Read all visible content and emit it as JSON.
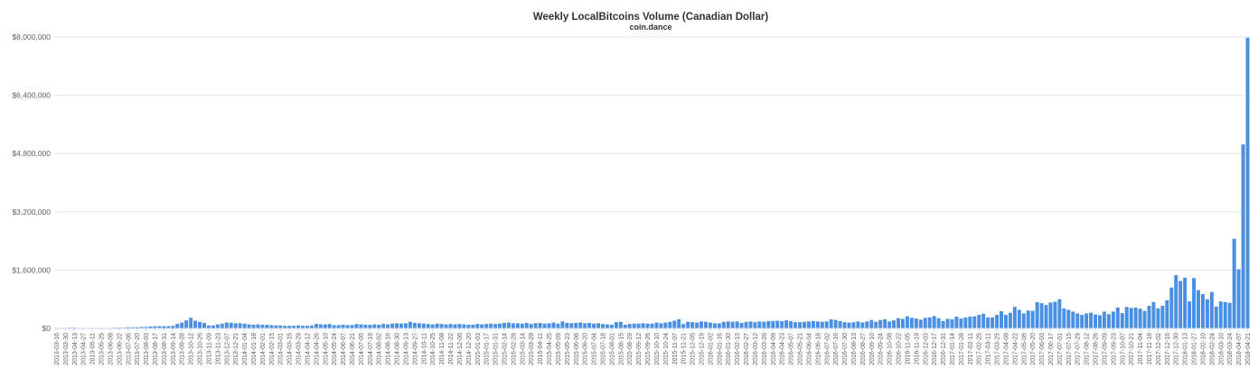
{
  "chart_data": {
    "type": "bar",
    "title": "Weekly LocalBitcoins Volume (Canadian Dollar)",
    "subtitle": "coin.dance",
    "xlabel": "",
    "ylabel": "",
    "ylim": [
      0,
      8000000
    ],
    "y_ticks": [
      0,
      1600000,
      3200000,
      4800000,
      6400000,
      8000000
    ],
    "y_tick_labels": [
      "$0",
      "$1,600,000",
      "$3,200,000",
      "$4,800,000",
      "$6,400,000",
      "$8,000,000"
    ],
    "grid": true,
    "legend": "none",
    "color": "#4a90e2",
    "x_start": "2013-03-16",
    "x_step_days": 7,
    "x_label_every": 2,
    "values": [
      5000,
      10000,
      10000,
      20000,
      20000,
      10000,
      10000,
      10000,
      10000,
      10000,
      10000,
      10000,
      10000,
      20000,
      20000,
      20000,
      30000,
      30000,
      30000,
      40000,
      40000,
      50000,
      60000,
      60000,
      60000,
      60000,
      70000,
      120000,
      160000,
      220000,
      290000,
      210000,
      180000,
      150000,
      80000,
      80000,
      110000,
      130000,
      160000,
      150000,
      140000,
      140000,
      130000,
      110000,
      100000,
      110000,
      100000,
      100000,
      90000,
      80000,
      80000,
      70000,
      70000,
      70000,
      80000,
      70000,
      70000,
      80000,
      120000,
      110000,
      110000,
      120000,
      90000,
      90000,
      100000,
      90000,
      90000,
      120000,
      110000,
      100000,
      100000,
      110000,
      100000,
      120000,
      110000,
      130000,
      140000,
      130000,
      140000,
      180000,
      150000,
      140000,
      130000,
      120000,
      110000,
      130000,
      120000,
      110000,
      120000,
      110000,
      120000,
      110000,
      100000,
      100000,
      120000,
      110000,
      120000,
      130000,
      120000,
      130000,
      150000,
      160000,
      140000,
      140000,
      130000,
      150000,
      120000,
      140000,
      150000,
      130000,
      140000,
      160000,
      130000,
      190000,
      150000,
      140000,
      150000,
      160000,
      140000,
      150000,
      130000,
      140000,
      120000,
      110000,
      100000,
      170000,
      180000,
      100000,
      120000,
      130000,
      130000,
      140000,
      130000,
      130000,
      160000,
      140000,
      160000,
      180000,
      210000,
      250000,
      120000,
      180000,
      170000,
      160000,
      190000,
      180000,
      160000,
      140000,
      140000,
      180000,
      190000,
      180000,
      190000,
      150000,
      180000,
      190000,
      170000,
      190000,
      180000,
      200000,
      200000,
      210000,
      200000,
      220000,
      200000,
      170000,
      170000,
      180000,
      190000,
      200000,
      190000,
      180000,
      190000,
      250000,
      230000,
      200000,
      170000,
      160000,
      170000,
      190000,
      160000,
      190000,
      230000,
      180000,
      230000,
      250000,
      190000,
      220000,
      280000,
      260000,
      330000,
      290000,
      270000,
      240000,
      290000,
      300000,
      340000,
      280000,
      200000,
      260000,
      250000,
      320000,
      270000,
      300000,
      320000,
      330000,
      370000,
      400000,
      300000,
      300000,
      370000,
      470000,
      370000,
      430000,
      590000,
      510000,
      410000,
      490000,
      480000,
      720000,
      690000,
      640000,
      710000,
      730000,
      800000,
      550000,
      510000,
      460000,
      410000,
      370000,
      410000,
      430000,
      380000,
      360000,
      460000,
      390000,
      460000,
      570000,
      420000,
      590000,
      560000,
      570000,
      540000,
      480000,
      620000,
      720000,
      550000,
      620000,
      770000,
      1120000,
      1460000,
      1300000,
      1390000,
      740000,
      1380000,
      1050000,
      940000,
      800000,
      1000000,
      600000,
      740000,
      720000,
      700000,
      2460000,
      1620000,
      5050000,
      7980000
    ]
  }
}
